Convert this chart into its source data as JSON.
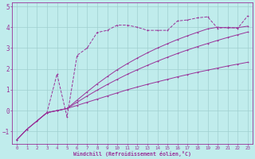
{
  "xlabel": "Windchill (Refroidissement éolien,°C)",
  "bg_color": "#c0ecec",
  "grid_color": "#a0d0d0",
  "line_color": "#993399",
  "ylim": [
    -1.6,
    5.2
  ],
  "xlim": [
    -0.5,
    23.5
  ],
  "yticks": [
    -1,
    0,
    1,
    2,
    3,
    4,
    5
  ],
  "xticks": [
    0,
    1,
    2,
    3,
    4,
    5,
    6,
    7,
    8,
    9,
    10,
    11,
    12,
    13,
    14,
    15,
    16,
    17,
    18,
    19,
    20,
    21,
    22,
    23
  ],
  "series1_x": [
    0,
    1,
    2,
    3,
    4,
    5,
    6,
    7,
    8,
    9,
    10,
    11,
    12,
    13,
    14,
    15,
    16,
    17,
    18,
    19,
    20,
    21,
    22,
    23
  ],
  "series1_y": [
    -1.4,
    -0.9,
    -0.5,
    -0.1,
    0.0,
    0.1,
    0.25,
    0.4,
    0.55,
    0.7,
    0.85,
    1.0,
    1.13,
    1.26,
    1.38,
    1.5,
    1.62,
    1.73,
    1.84,
    1.94,
    2.04,
    2.14,
    2.23,
    2.32
  ],
  "series2_x": [
    0,
    1,
    2,
    3,
    4,
    5,
    6,
    7,
    8,
    9,
    10,
    11,
    12,
    13,
    14,
    15,
    16,
    17,
    18,
    19,
    20,
    21,
    22,
    23
  ],
  "series2_y": [
    -1.4,
    -0.9,
    -0.5,
    -0.1,
    0.0,
    0.1,
    0.4,
    0.7,
    0.98,
    1.25,
    1.5,
    1.74,
    1.96,
    2.17,
    2.37,
    2.56,
    2.74,
    2.91,
    3.07,
    3.22,
    3.37,
    3.51,
    3.64,
    3.77
  ],
  "series3_x": [
    0,
    1,
    2,
    3,
    4,
    5,
    6,
    7,
    8,
    9,
    10,
    11,
    12,
    13,
    14,
    15,
    16,
    17,
    18,
    19,
    20,
    21,
    22,
    23
  ],
  "series3_y": [
    -1.4,
    -0.9,
    -0.5,
    -0.1,
    0.0,
    0.1,
    0.5,
    0.9,
    1.28,
    1.63,
    1.96,
    2.25,
    2.52,
    2.77,
    3.0,
    3.21,
    3.41,
    3.59,
    3.76,
    3.92,
    4.0,
    3.97,
    3.98,
    4.05
  ],
  "series4_x": [
    2,
    3,
    4,
    5,
    6,
    7,
    8,
    9,
    10,
    11,
    12,
    13,
    14,
    15,
    16,
    17,
    18,
    19,
    20,
    21,
    22,
    23
  ],
  "series4_y": [
    -0.5,
    -0.1,
    1.75,
    -0.3,
    2.65,
    3.0,
    3.75,
    3.85,
    4.1,
    4.1,
    4.0,
    3.85,
    3.85,
    3.85,
    4.3,
    4.35,
    4.45,
    4.5,
    3.95,
    4.0,
    3.95,
    4.55
  ]
}
